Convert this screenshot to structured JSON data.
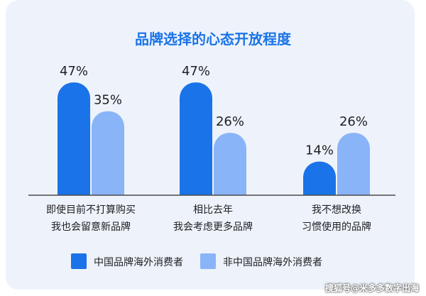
{
  "chart_data": {
    "type": "bar",
    "title": "品牌选择的心态开放程度",
    "categories": [
      [
        "即使目前不打算购买",
        "我也会留意新品牌"
      ],
      [
        "相比去年",
        "我会考虑更多品牌"
      ],
      [
        "我不想改换",
        "习惯使用的品牌"
      ]
    ],
    "series": [
      {
        "name": "中国品牌海外消费者",
        "values": [
          47,
          47,
          14
        ],
        "color": "#1a73e8"
      },
      {
        "name": "非中国品牌海外消费者",
        "values": [
          35,
          26,
          26
        ],
        "color": "#8ab4f8"
      }
    ],
    "value_suffix": "%",
    "ylim": [
      0,
      50
    ],
    "grid": false,
    "legend_position": "bottom-left"
  },
  "watermark": "搜狐号@米多多数字出海",
  "colors": {
    "title": "#1a73e8",
    "background": "#eef3fb",
    "axis": "#4a4a4a"
  }
}
